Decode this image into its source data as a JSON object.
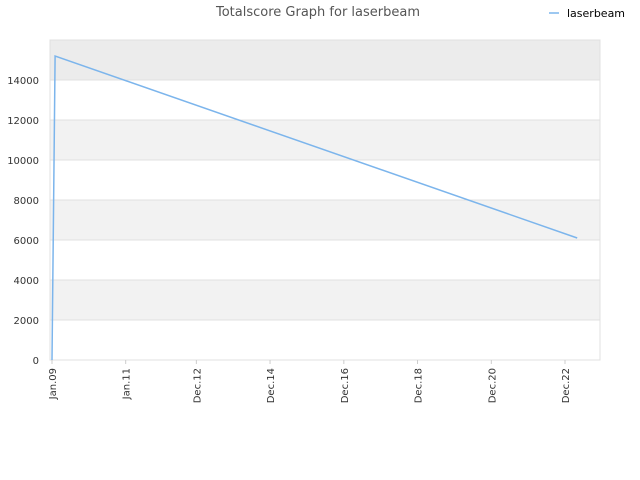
{
  "chart_data": {
    "type": "line",
    "title": "Totalscore Graph for laserbeam",
    "xlabel": "",
    "ylabel": "",
    "x_tick_labels": [
      "Jan.09",
      "Jan.11",
      "Dec.12",
      "Dec.14",
      "Dec.16",
      "Dec.18",
      "Dec.20",
      "Dec.22"
    ],
    "y_tick_labels": [
      "0",
      "2000",
      "4000",
      "6000",
      "8000",
      "10000",
      "12000",
      "14000"
    ],
    "ylim": [
      0,
      16000
    ],
    "grid": "horizontal alternating bands",
    "legend": "top-right",
    "series": [
      {
        "name": "laserbeam",
        "color": "#7cb5ec",
        "points": [
          {
            "x": "2009-01",
            "y": 0
          },
          {
            "x": "2009-02",
            "y": 15200
          },
          {
            "x": "2023-04",
            "y": 6100
          }
        ]
      }
    ]
  },
  "colors": {
    "band_dark": "#f2f2f2",
    "band_top": "#ececec",
    "grid_line": "#e0e0e0",
    "axis_line": "#cccccc"
  }
}
